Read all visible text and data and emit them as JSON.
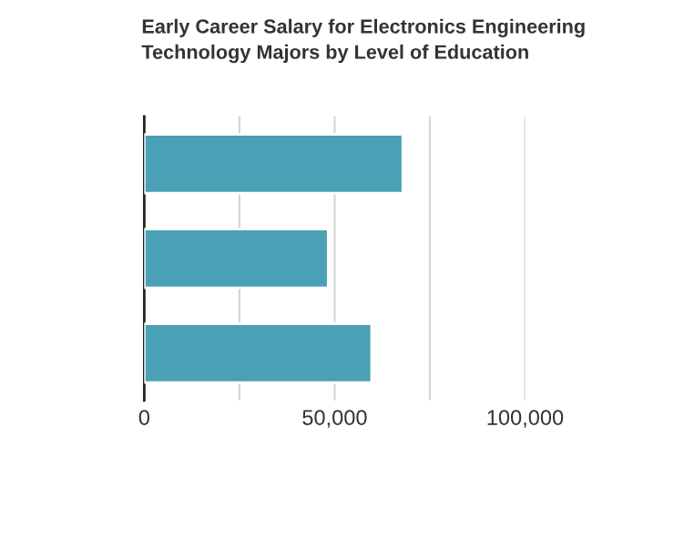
{
  "chart_data": {
    "type": "bar",
    "orientation": "horizontal",
    "title": "Early Career Salary for Electronics Engineering Technology Majors by Level of Education",
    "categories": [
      null,
      null,
      null
    ],
    "values": [
      67900,
      48300,
      59700
    ],
    "color": "#4aa0b5",
    "xlim": [
      0,
      100000
    ],
    "xticks": [
      0,
      {
        "value": 25000,
        "label": null
      },
      {
        "value": 50000,
        "label": "50,000"
      },
      {
        "value": 75000,
        "label": null
      },
      {
        "value": 100000,
        "label": "100,000"
      }
    ],
    "grid": "x",
    "tick_labels": "x"
  }
}
